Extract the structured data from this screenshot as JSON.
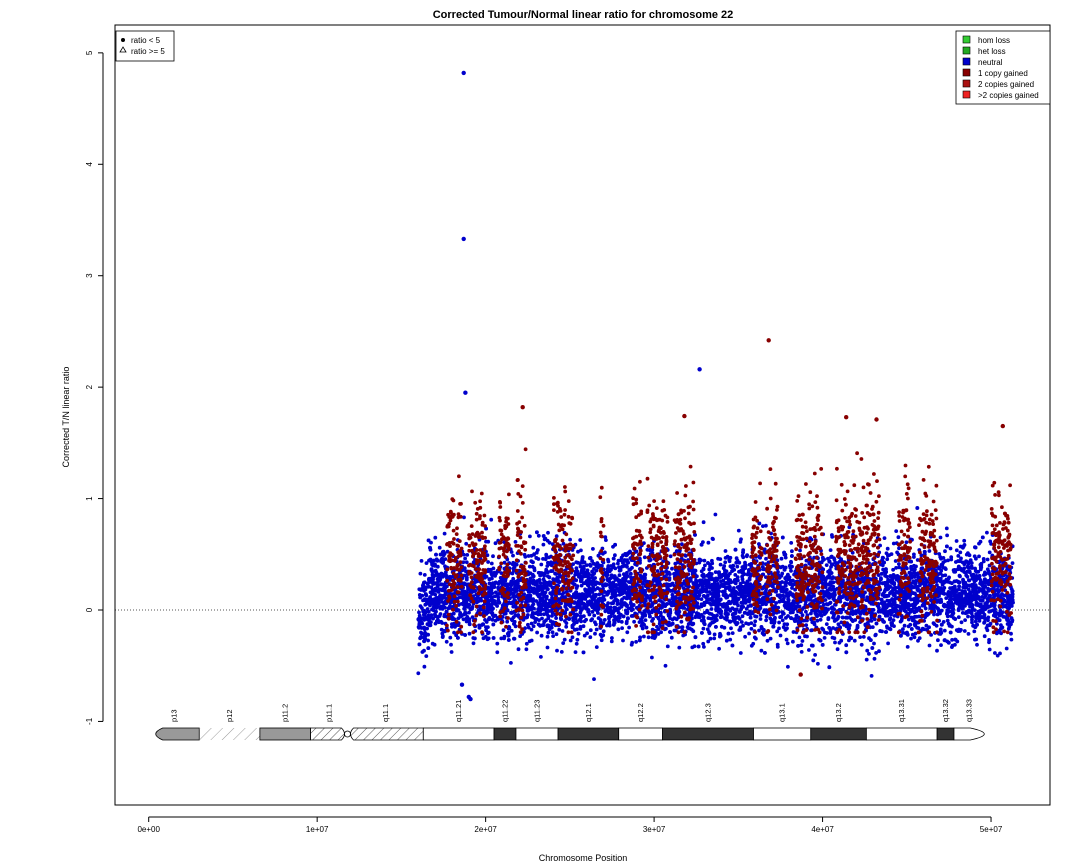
{
  "chart_data": {
    "type": "scatter",
    "title": "Corrected Tumour/Normal linear ratio for chromosome  22",
    "xlabel": "Chromosome Position",
    "ylabel": "Corrected T/N linear ratio",
    "xlim": [
      -2000000,
      53500000
    ],
    "ylim": [
      -1.75,
      5.25
    ],
    "x_ticks": [
      0,
      10000000,
      20000000,
      30000000,
      40000000,
      50000000
    ],
    "x_tick_labels": [
      "0e+00",
      "1e+07",
      "2e+07",
      "3e+07",
      "4e+07",
      "5e+07"
    ],
    "y_ticks": [
      -1,
      0,
      1,
      2,
      3,
      4,
      5
    ],
    "y_tick_labels": [
      "-1",
      "0",
      "1",
      "2",
      "3",
      "4",
      "5"
    ],
    "reference_line": 0,
    "data_range_x": [
      16000000,
      51300000
    ],
    "series": [
      {
        "name": "neutral",
        "color": "#0000cc",
        "approx_mean": 0.15,
        "approx_sd": 0.2
      },
      {
        "name": "1 copy gained",
        "color": "#880000",
        "approx_mean": 0.45,
        "approx_sd": 0.3
      }
    ],
    "gain_regions": [
      [
        17700000,
        18600000
      ],
      [
        19000000,
        20000000
      ],
      [
        20800000,
        21400000
      ],
      [
        21800000,
        22400000
      ],
      [
        24000000,
        25200000
      ],
      [
        26800000,
        27000000
      ],
      [
        28700000,
        29300000
      ],
      [
        29600000,
        30800000
      ],
      [
        31200000,
        32400000
      ],
      [
        35800000,
        36400000
      ],
      [
        36700000,
        37400000
      ],
      [
        38400000,
        40000000
      ],
      [
        40800000,
        43400000
      ],
      [
        44500000,
        45200000
      ],
      [
        45700000,
        46800000
      ],
      [
        50000000,
        51200000
      ]
    ],
    "outliers": [
      {
        "x": 18700000,
        "y": 4.82,
        "series": "neutral"
      },
      {
        "x": 18700000,
        "y": 3.33,
        "series": "neutral"
      },
      {
        "x": 18800000,
        "y": 1.95,
        "series": "neutral"
      },
      {
        "x": 32700000,
        "y": 2.16,
        "series": "neutral"
      },
      {
        "x": 22200000,
        "y": 1.82,
        "series": "1 copy gained"
      },
      {
        "x": 36800000,
        "y": 2.42,
        "series": "1 copy gained"
      },
      {
        "x": 31800000,
        "y": 1.74,
        "series": "1 copy gained"
      },
      {
        "x": 41400000,
        "y": 1.73,
        "series": "1 copy gained"
      },
      {
        "x": 43200000,
        "y": 1.71,
        "series": "1 copy gained"
      },
      {
        "x": 50700000,
        "y": 1.65,
        "series": "1 copy gained"
      },
      {
        "x": 19000000,
        "y": -0.78,
        "series": "neutral"
      },
      {
        "x": 19100000,
        "y": -0.8,
        "series": "neutral"
      },
      {
        "x": 18600000,
        "y": -0.67,
        "series": "neutral"
      },
      {
        "x": 38700000,
        "y": -0.58,
        "series": "1 copy gained"
      }
    ],
    "cytobands": [
      {
        "name": "p13",
        "start": 0,
        "end": 3000000,
        "style": "gray"
      },
      {
        "name": "p12",
        "start": 3000000,
        "end": 6600000,
        "style": "stalk"
      },
      {
        "name": "p11.2",
        "start": 6600000,
        "end": 9600000,
        "style": "gray"
      },
      {
        "name": "p11.1",
        "start": 9600000,
        "end": 11800000,
        "style": "hatch"
      },
      {
        "name": "q11.1",
        "start": 11800000,
        "end": 16300000,
        "style": "hatch"
      },
      {
        "name": "q11.21",
        "start": 16300000,
        "end": 20500000,
        "style": "white"
      },
      {
        "name": "q11.22",
        "start": 20500000,
        "end": 21800000,
        "style": "black"
      },
      {
        "name": "q11.23",
        "start": 21800000,
        "end": 24300000,
        "style": "white"
      },
      {
        "name": "q12.1",
        "start": 24300000,
        "end": 27900000,
        "style": "black"
      },
      {
        "name": "q12.2",
        "start": 27900000,
        "end": 30500000,
        "style": "white"
      },
      {
        "name": "q12.3",
        "start": 30500000,
        "end": 35900000,
        "style": "black"
      },
      {
        "name": "q13.1",
        "start": 35900000,
        "end": 39300000,
        "style": "white"
      },
      {
        "name": "q13.2",
        "start": 39300000,
        "end": 42600000,
        "style": "black"
      },
      {
        "name": "q13.31",
        "start": 42600000,
        "end": 46800000,
        "style": "white"
      },
      {
        "name": "q13.32",
        "start": 46800000,
        "end": 47800000,
        "style": "black"
      },
      {
        "name": "q13.33",
        "start": 47800000,
        "end": 49600000,
        "style": "white"
      }
    ],
    "legend_shape": {
      "placement": "top-left",
      "entries": [
        {
          "label": "ratio < 5",
          "symbol": "dot"
        },
        {
          "label": "ratio >= 5",
          "symbol": "triangle"
        }
      ]
    },
    "legend_color": {
      "placement": "top-right",
      "entries": [
        {
          "label": "hom loss",
          "color": "#33cc33"
        },
        {
          "label": "het loss",
          "color": "#22aa22"
        },
        {
          "label": "neutral",
          "color": "#0000cc"
        },
        {
          "label": "1 copy gained",
          "color": "#880000"
        },
        {
          "label": "2 copies gained",
          "color": "#aa1111"
        },
        {
          "label": ">2 copies gained",
          "color": "#ee2222"
        }
      ]
    }
  }
}
